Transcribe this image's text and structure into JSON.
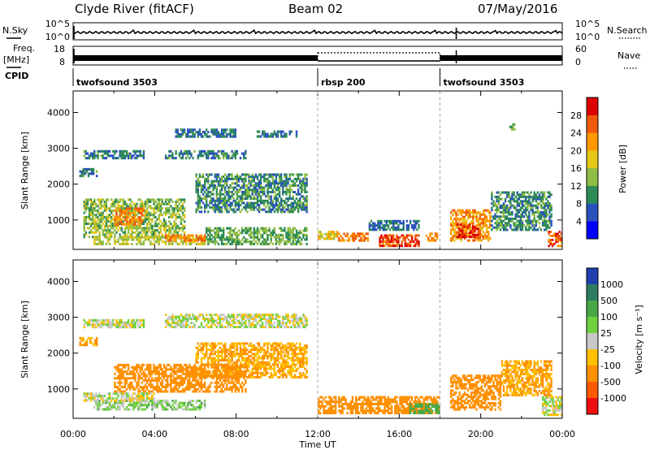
{
  "header": {
    "station": "Clyde River (fitACF)",
    "beam": "Beam 02",
    "date": "07/May/2016"
  },
  "panel_labels": {
    "nsky": "N.Sky",
    "nsearch": "N.Search",
    "freq": "Freq.",
    "freq_unit": "[MHz]",
    "nave": "Nave",
    "cpid": "CPID"
  },
  "chart_data": [
    {
      "type": "line",
      "title": "",
      "left_ticks": [
        "10^5",
        "10^0"
      ],
      "right_ticks": [
        "10^5",
        "10^0"
      ],
      "series": [
        {
          "name": "N.Sky"
        },
        {
          "name": "N.Search"
        }
      ]
    },
    {
      "type": "line",
      "left_ticks": [
        "18",
        "8"
      ],
      "right_ticks": [
        "60",
        "0"
      ],
      "series": [
        {
          "name": "Freq."
        },
        {
          "name": "Nave"
        }
      ]
    },
    {
      "type": "table",
      "cpid_segments": [
        {
          "label": "twofsound 3503",
          "start_hour": 0,
          "end_hour": 12
        },
        {
          "label": "rbsp 200",
          "start_hour": 12,
          "end_hour": 18
        },
        {
          "label": "twofsound 3503",
          "start_hour": 18,
          "end_hour": 24
        }
      ]
    },
    {
      "type": "heatmap",
      "ylabel": "Slant Range [km]",
      "yticks": [
        1000,
        2000,
        3000,
        4000
      ],
      "ylim": [
        180,
        4600
      ],
      "xlim": [
        0,
        24
      ],
      "colorbar_label": "Power [dB]",
      "colorbar_ticks": [
        "28",
        "24",
        "20",
        "16",
        "12",
        "8",
        "4"
      ],
      "colorbar_colors": [
        "#0000ff",
        "#2a52be",
        "#2e8b57",
        "#8fbc45",
        "#e6c619",
        "#ff9900",
        "#f05a0a",
        "#dd0000"
      ],
      "regions": [
        {
          "x0": 0.5,
          "x1": 3.5,
          "y0": 2700,
          "y1": 2950,
          "power": 9
        },
        {
          "x0": 4.5,
          "x1": 8.5,
          "y0": 2700,
          "y1": 2950,
          "power": 9
        },
        {
          "x0": 0.3,
          "x1": 1.2,
          "y0": 2200,
          "y1": 2450,
          "power": 9
        },
        {
          "x0": 5.0,
          "x1": 8.0,
          "y0": 3300,
          "y1": 3550,
          "power": 8
        },
        {
          "x0": 9.0,
          "x1": 11.0,
          "y0": 3300,
          "y1": 3500,
          "power": 8
        },
        {
          "x0": 6.0,
          "x1": 11.5,
          "y0": 1200,
          "y1": 2300,
          "power": 10
        },
        {
          "x0": 0.5,
          "x1": 5.5,
          "y0": 500,
          "y1": 1600,
          "power": 14
        },
        {
          "x0": 2.0,
          "x1": 3.5,
          "y0": 850,
          "y1": 1350,
          "power": 24
        },
        {
          "x0": 1.0,
          "x1": 6.5,
          "y0": 300,
          "y1": 550,
          "power": 16
        },
        {
          "x0": 4.5,
          "x1": 6.5,
          "y0": 400,
          "y1": 600,
          "power": 24
        },
        {
          "x0": 6.5,
          "x1": 11.5,
          "y0": 300,
          "y1": 800,
          "power": 12
        },
        {
          "x0": 12.0,
          "x1": 13.0,
          "y0": 450,
          "y1": 700,
          "power": 18
        },
        {
          "x0": 13.0,
          "x1": 14.5,
          "y0": 400,
          "y1": 650,
          "power": 24
        },
        {
          "x0": 15.0,
          "x1": 17.0,
          "y0": 250,
          "y1": 600,
          "power": 27
        },
        {
          "x0": 17.3,
          "x1": 17.9,
          "y0": 400,
          "y1": 650,
          "power": 24
        },
        {
          "x0": 18.5,
          "x1": 20.5,
          "y0": 400,
          "y1": 1300,
          "power": 22
        },
        {
          "x0": 18.8,
          "x1": 20.0,
          "y0": 500,
          "y1": 900,
          "power": 28
        },
        {
          "x0": 20.5,
          "x1": 23.5,
          "y0": 700,
          "y1": 1800,
          "power": 10
        },
        {
          "x0": 23.3,
          "x1": 24.0,
          "y0": 250,
          "y1": 700,
          "power": 26
        },
        {
          "x0": 21.4,
          "x1": 21.7,
          "y0": 3500,
          "y1": 3700,
          "power": 12
        },
        {
          "x0": 14.5,
          "x1": 17.0,
          "y0": 700,
          "y1": 1000,
          "power": 8
        }
      ]
    },
    {
      "type": "heatmap",
      "ylabel": "Slant Range [km]",
      "yticks": [
        1000,
        2000,
        3000,
        4000
      ],
      "ylim": [
        180,
        4600
      ],
      "xlim": [
        0,
        24
      ],
      "xlabel": "Time UT",
      "xticks": [
        "00:00",
        "04:00",
        "08:00",
        "12:00",
        "16:00",
        "20:00",
        "00:00"
      ],
      "colorbar_label": "Velocity [m s⁻¹]",
      "colorbar_ticks": [
        "1000",
        "500",
        "100",
        "25",
        "-25",
        "-100",
        "-500",
        "-1000"
      ],
      "colorbar_colors": [
        "#2040b0",
        "#2e7d60",
        "#48a848",
        "#70d040",
        "#c8c8c8",
        "#ffc000",
        "#ff9000",
        "#ff5a00",
        "#ee1010"
      ],
      "regions": [
        {
          "x0": 0.5,
          "x1": 3.5,
          "y0": 2700,
          "y1": 2950,
          "velocity": 0
        },
        {
          "x0": 4.5,
          "x1": 11.5,
          "y0": 2700,
          "y1": 3100,
          "velocity": 0
        },
        {
          "x0": 0.3,
          "x1": 1.2,
          "y0": 2200,
          "y1": 2450,
          "velocity": -100
        },
        {
          "x0": 6.0,
          "x1": 11.5,
          "y0": 1300,
          "y1": 2300,
          "velocity": -100
        },
        {
          "x0": 2.0,
          "x1": 8.5,
          "y0": 900,
          "y1": 1700,
          "velocity": -300
        },
        {
          "x0": 1.0,
          "x1": 6.5,
          "y0": 400,
          "y1": 700,
          "velocity": 50
        },
        {
          "x0": 0.5,
          "x1": 4.0,
          "y0": 650,
          "y1": 900,
          "velocity": 0
        },
        {
          "x0": 12.0,
          "x1": 18.0,
          "y0": 300,
          "y1": 800,
          "velocity": -200
        },
        {
          "x0": 16.5,
          "x1": 18.0,
          "y0": 300,
          "y1": 600,
          "velocity": 200
        },
        {
          "x0": 18.5,
          "x1": 21.0,
          "y0": 400,
          "y1": 1400,
          "velocity": -300
        },
        {
          "x0": 21.0,
          "x1": 23.5,
          "y0": 800,
          "y1": 1800,
          "velocity": -100
        },
        {
          "x0": 23.0,
          "x1": 24.0,
          "y0": 250,
          "y1": 800,
          "velocity": 0
        }
      ]
    }
  ]
}
